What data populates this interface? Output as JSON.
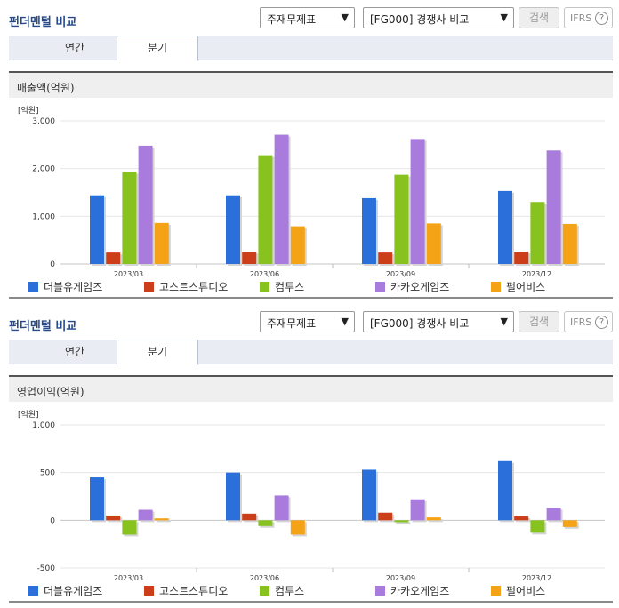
{
  "panels": [
    {
      "title": "펀더멘털 비교",
      "select1": "주재무제표",
      "select2": "[FG000] 경쟁사 비교",
      "search_label": "검색",
      "ifrs_label": "IFRS",
      "help_glyph": "?",
      "tabs": [
        "연간",
        "분기"
      ],
      "active_tab": "분기",
      "section_title": "매출액(억원)",
      "chart_data": {
        "type": "bar",
        "unit": "[억원]",
        "categories": [
          "2023/03",
          "2023/06",
          "2023/09",
          "2023/12"
        ],
        "ylim": [
          0,
          3000
        ],
        "yticks": [
          0,
          1000,
          2000,
          3000
        ],
        "ytick_labels": [
          "0",
          "1,000",
          "2,000",
          "3,000"
        ],
        "series": [
          {
            "name": "더블유게임즈",
            "color": "#2b6fdb",
            "values": [
              1440,
              1440,
              1380,
              1530
            ]
          },
          {
            "name": "고스트스튜디오",
            "color": "#cc3d1a",
            "values": [
              240,
              260,
              240,
              260
            ]
          },
          {
            "name": "컴투스",
            "color": "#88c21f",
            "values": [
              1930,
              2280,
              1870,
              1300
            ]
          },
          {
            "name": "카카오게임즈",
            "color": "#a87bdc",
            "values": [
              2480,
              2710,
              2620,
              2380
            ]
          },
          {
            "name": "펄어비스",
            "color": "#f5a316",
            "values": [
              860,
              790,
              850,
              840
            ]
          }
        ]
      }
    },
    {
      "title": "펀더멘털 비교",
      "select1": "주재무제표",
      "select2": "[FG000] 경쟁사 비교",
      "search_label": "검색",
      "ifrs_label": "IFRS",
      "help_glyph": "?",
      "tabs": [
        "연간",
        "분기"
      ],
      "active_tab": "분기",
      "section_title": "영업이익(억원)",
      "chart_data": {
        "type": "bar",
        "unit": "[억원]",
        "categories": [
          "2023/03",
          "2023/06",
          "2023/09",
          "2023/12"
        ],
        "ylim": [
          -500,
          1000
        ],
        "yticks": [
          -500,
          0,
          500,
          1000
        ],
        "ytick_labels": [
          "-500",
          "0",
          "500",
          "1,000"
        ],
        "series": [
          {
            "name": "더블유게임즈",
            "color": "#2b6fdb",
            "values": [
              450,
              500,
              530,
              620
            ]
          },
          {
            "name": "고스트스튜디오",
            "color": "#cc3d1a",
            "values": [
              50,
              70,
              80,
              40
            ]
          },
          {
            "name": "컴투스",
            "color": "#88c21f",
            "values": [
              -150,
              -60,
              -20,
              -130
            ]
          },
          {
            "name": "카카오게임즈",
            "color": "#a87bdc",
            "values": [
              110,
              260,
              220,
              130
            ]
          },
          {
            "name": "펄어비스",
            "color": "#f5a316",
            "values": [
              20,
              -150,
              30,
              -70
            ]
          }
        ]
      }
    }
  ]
}
